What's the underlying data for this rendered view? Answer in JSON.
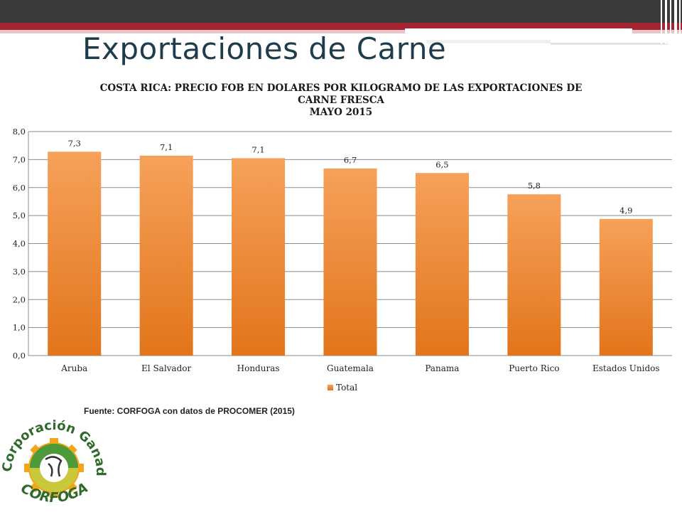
{
  "slide": {
    "title": "Exportaciones de Carne",
    "source": "Fuente: CORFOGA con datos de PROCOMER (2015)"
  },
  "logo": {
    "top_text": "Corporación Ganadera",
    "bottom_text": "CORFOGA"
  },
  "colors": {
    "bar_top": "#f6a15a",
    "bar_bottom": "#e2751b",
    "title": "#1f3c4d",
    "accent_red": "#a52431"
  },
  "chart_data": {
    "type": "bar",
    "title_lines": [
      "COSTA RICA: PRECIO FOB EN DOLARES POR KILOGRAMO DE LAS EXPORTACIONES DE",
      "CARNE FRESCA",
      "MAYO 2015"
    ],
    "categories": [
      "Aruba",
      "El Salvador",
      "Honduras",
      "Guatemala",
      "Panama",
      "Puerto Rico",
      "Estados Unidos"
    ],
    "series": [
      {
        "name": "Total",
        "values": [
          7.28,
          7.14,
          7.05,
          6.68,
          6.52,
          5.76,
          4.88
        ],
        "data_labels": [
          "7,3",
          "7,1",
          "7,1",
          "6,7",
          "6,5",
          "5,8",
          "4,9"
        ]
      }
    ],
    "y_ticks": [
      "0,0",
      "1,0",
      "2,0",
      "3,0",
      "4,0",
      "5,0",
      "6,0",
      "7,0",
      "8,0"
    ],
    "ylim": [
      0,
      8
    ],
    "grid": true,
    "legend_position": "bottom-left"
  }
}
